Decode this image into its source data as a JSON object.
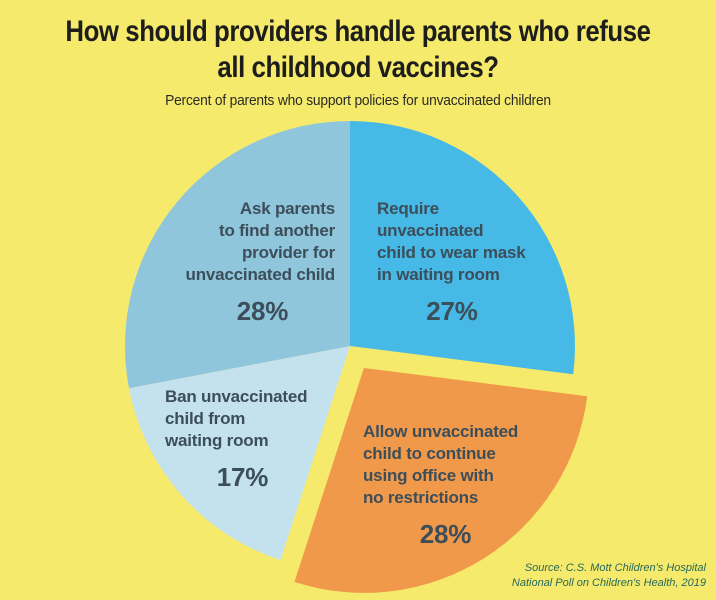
{
  "header": {
    "title": "How should providers handle parents who refuse\nall childhood vaccines?",
    "subtitle": "Percent of parents who support policies for unvaccinated children"
  },
  "source": "Source: C.S. Mott Children's Hospital\nNational Poll on Children's Health, 2019",
  "chart_data": {
    "type": "pie",
    "title": "How should providers handle parents who refuse all childhood vaccines?",
    "subtitle": "Percent of parents who support policies for unvaccinated children",
    "start_angle_deg": 0,
    "direction": "clockwise",
    "total": 100,
    "unit": "%",
    "legend_position": "labels-inside-slices",
    "slices": [
      {
        "id": "require-mask",
        "label": "Require unvaccinated child to wear mask in waiting room",
        "label_lines": "Require\nunvaccinated\nchild to wear mask\nin waiting room",
        "value": 27,
        "pct_label": "27%",
        "color": "#47B9E6",
        "explode": 0
      },
      {
        "id": "allow-no-restrictions",
        "label": "Allow unvaccinated child to continue using office with no restrictions",
        "label_lines": "Allow unvaccinated\nchild to continue\nusing office with\nno restrictions",
        "value": 28,
        "pct_label": "28%",
        "color": "#F0994B",
        "explode": 26
      },
      {
        "id": "ban-waiting-room",
        "label": "Ban unvaccinated child from waiting room",
        "label_lines": "Ban unvaccinated\nchild from\nwaiting room",
        "value": 17,
        "pct_label": "17%",
        "color": "#C3E2EE",
        "explode": 0
      },
      {
        "id": "ask-find-another",
        "label": "Ask parents to find another provider for unvaccinated child",
        "label_lines": "Ask parents\nto find another\nprovider for\nunvaccinated child",
        "value": 28,
        "pct_label": "28%",
        "color": "#8FC6DC",
        "explode": 0
      }
    ],
    "colors": {
      "background": "#F5EA6C",
      "label_text": "#3C4E59",
      "title_text": "#1D1D1B",
      "source_text": "#27695A"
    }
  }
}
